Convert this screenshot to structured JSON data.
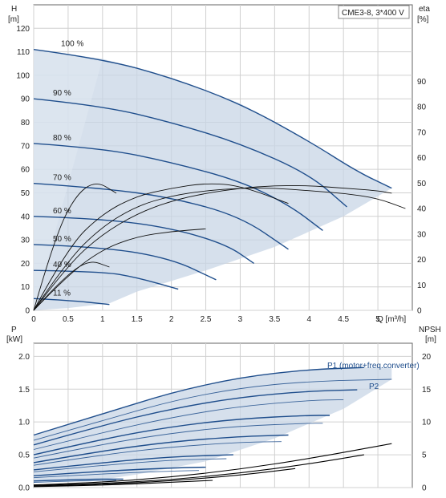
{
  "colors": {
    "pump_curve": "#1f4e8c",
    "envelope_fill": "#c8d6e5",
    "envelope_fill_light": "#dfe8f1",
    "efficiency_curve": "#111111",
    "npsh_curve": "#000000",
    "grid": "#d0d0d0",
    "axis": "#666666"
  },
  "chart_data": [
    {
      "type": "line",
      "panel": "head",
      "title": "CME3-8, 3*400 V",
      "xlabel": "Q [m³/h]",
      "ylabel_left": "H\n[m]",
      "ylabel_right": "eta\n[%]",
      "xlim": [
        0,
        5.5
      ],
      "ylim_left": [
        0,
        130
      ],
      "ylim_right": [
        0,
        120
      ],
      "x_ticks": [
        "0",
        "0.5",
        "1",
        "1.5",
        "2",
        "2.5",
        "3",
        "3.5",
        "4",
        "4.5",
        "5"
      ],
      "y_ticks_left": [
        "0",
        "10",
        "20",
        "30",
        "40",
        "50",
        "60",
        "70",
        "80",
        "90",
        "100",
        "110",
        "120"
      ],
      "y_ticks_right": [
        "0",
        "10",
        "20",
        "30",
        "40",
        "50",
        "60",
        "70",
        "80",
        "90"
      ],
      "grid": true,
      "head_curves": [
        {
          "label": "100 %",
          "x": [
            0,
            1,
            2,
            3,
            4,
            4.7,
            5.2
          ],
          "y": [
            111,
            107,
            99,
            88,
            72,
            59,
            52
          ]
        },
        {
          "label": "90 %",
          "x": [
            0,
            1,
            2,
            3,
            4,
            4.55
          ],
          "y": [
            90,
            87,
            80,
            71,
            58,
            44
          ]
        },
        {
          "label": "80 %",
          "x": [
            0,
            1,
            2,
            3,
            3.7,
            4.2
          ],
          "y": [
            71,
            69,
            63,
            55,
            45,
            34
          ]
        },
        {
          "label": "70 %",
          "x": [
            0,
            1,
            2,
            3,
            3.7
          ],
          "y": [
            54,
            52,
            48,
            40,
            26
          ]
        },
        {
          "label": "60 %",
          "x": [
            0,
            1,
            2,
            2.8,
            3.2
          ],
          "y": [
            40,
            39,
            35,
            28,
            20
          ]
        },
        {
          "label": "50 %",
          "x": [
            0,
            1,
            2,
            2.65
          ],
          "y": [
            28,
            27,
            22,
            13
          ]
        },
        {
          "label": "40 %",
          "x": [
            0,
            1,
            1.5,
            2.1
          ],
          "y": [
            17,
            16.5,
            14,
            9
          ]
        },
        {
          "label": "11 %",
          "x": [
            0,
            0.5,
            1.1
          ],
          "y": [
            5,
            4.3,
            2.5
          ]
        }
      ],
      "envelope": {
        "upper_x": [
          0,
          1,
          2,
          3,
          4,
          4.7,
          5.2
        ],
        "upper_y": [
          111,
          107,
          99,
          88,
          72,
          59,
          52
        ],
        "lower_x": [
          5.2,
          4.5,
          3.5,
          2.5,
          1.5,
          1.1,
          0.5,
          0
        ],
        "lower_y": [
          52,
          40,
          27,
          17,
          8,
          3,
          1,
          0
        ]
      },
      "efficiency_curves": [
        {
          "x": [
            0,
            0.3,
            0.6,
            0.9,
            1.2
          ],
          "y": [
            0,
            28,
            45,
            51,
            46
          ]
        },
        {
          "x": [
            0,
            0.5,
            1,
            1.5,
            2,
            2.5,
            3,
            3.7
          ],
          "y": [
            0,
            25,
            38,
            45,
            48,
            50,
            49,
            42
          ]
        },
        {
          "x": [
            0,
            0.5,
            1,
            1.5,
            2,
            2.5,
            3,
            3.5,
            4,
            4.5,
            5,
            5.4
          ],
          "y": [
            0,
            20,
            33,
            41,
            45,
            47,
            48,
            48,
            47,
            46,
            44,
            40
          ]
        },
        {
          "x": [
            0,
            0.5,
            1,
            1.5,
            2,
            2.5,
            3,
            3.5,
            4,
            4.5,
            5,
            5.2
          ],
          "y": [
            0,
            18,
            30,
            38,
            43,
            46,
            48,
            49,
            49,
            48,
            47,
            46
          ]
        },
        {
          "x": [
            0,
            0.5,
            1,
            1.5,
            2,
            2.5
          ],
          "y": [
            0,
            14,
            24,
            29,
            31,
            32
          ]
        },
        {
          "x": [
            0,
            0.4,
            0.8,
            1.1
          ],
          "y": [
            0,
            12,
            20,
            17
          ]
        }
      ]
    },
    {
      "type": "line",
      "panel": "power",
      "xlabel": "",
      "ylabel_left": "P\n[kW]",
      "ylabel_right": "NPSH\n[m]",
      "xlim": [
        0,
        5.5
      ],
      "ylim_left": [
        0,
        2.2
      ],
      "ylim_right": [
        0,
        22
      ],
      "y_ticks_left": [
        "0.0",
        "0.5",
        "1.0",
        "1.5",
        "2.0"
      ],
      "y_ticks_right": [
        "0",
        "5",
        "10",
        "15",
        "20"
      ],
      "grid": true,
      "series_labels": [
        "P1 (motor+freq.converter)",
        "P2"
      ],
      "p1_curves": [
        {
          "x": [
            0,
            1,
            2,
            3,
            4,
            4.8
          ],
          "y": [
            0.8,
            1.12,
            1.45,
            1.68,
            1.8,
            1.83
          ]
        },
        {
          "x": [
            0,
            1,
            2,
            3,
            4,
            4.7
          ],
          "y": [
            0.65,
            0.95,
            1.2,
            1.38,
            1.47,
            1.49
          ]
        },
        {
          "x": [
            0,
            1,
            2,
            3,
            4,
            4.3
          ],
          "y": [
            0.5,
            0.74,
            0.93,
            1.05,
            1.1,
            1.1
          ]
        },
        {
          "x": [
            0,
            1,
            2,
            3,
            3.7
          ],
          "y": [
            0.38,
            0.56,
            0.7,
            0.78,
            0.8
          ]
        },
        {
          "x": [
            0,
            1,
            2,
            2.9
          ],
          "y": [
            0.27,
            0.38,
            0.47,
            0.5
          ]
        },
        {
          "x": [
            0,
            1,
            2,
            2.5
          ],
          "y": [
            0.18,
            0.25,
            0.3,
            0.31
          ]
        },
        {
          "x": [
            0,
            0.5,
            1,
            1.3
          ],
          "y": [
            0.1,
            0.12,
            0.13,
            0.13
          ]
        }
      ],
      "p2_curves": [
        {
          "x": [
            0,
            1,
            2,
            3,
            4,
            5.2
          ],
          "y": [
            0.72,
            1.02,
            1.32,
            1.52,
            1.62,
            1.65
          ]
        },
        {
          "x": [
            0,
            1,
            2,
            3,
            4,
            4.5
          ],
          "y": [
            0.58,
            0.84,
            1.07,
            1.24,
            1.33,
            1.34
          ]
        },
        {
          "x": [
            0,
            1,
            2,
            3,
            4,
            4.2
          ],
          "y": [
            0.45,
            0.66,
            0.83,
            0.94,
            0.98,
            0.98
          ]
        },
        {
          "x": [
            0,
            1,
            2,
            3,
            3.6
          ],
          "y": [
            0.34,
            0.5,
            0.62,
            0.69,
            0.7
          ]
        },
        {
          "x": [
            0,
            1,
            2,
            2.8
          ],
          "y": [
            0.24,
            0.34,
            0.42,
            0.44
          ]
        },
        {
          "x": [
            0,
            1,
            2,
            2.4
          ],
          "y": [
            0.15,
            0.21,
            0.25,
            0.26
          ]
        },
        {
          "x": [
            0,
            0.5,
            1,
            1.2
          ],
          "y": [
            0.08,
            0.1,
            0.11,
            0.11
          ]
        }
      ],
      "npsh_curves": [
        {
          "x": [
            0,
            1,
            2,
            3,
            4,
            5.2
          ],
          "y": [
            0.4,
            0.8,
            1.6,
            2.8,
            4.4,
            6.7
          ]
        },
        {
          "x": [
            0,
            1,
            2,
            3,
            4,
            4.8
          ],
          "y": [
            0.3,
            0.6,
            1.2,
            2.2,
            3.6,
            5
          ]
        },
        {
          "x": [
            0,
            1,
            2,
            3,
            3.8
          ],
          "y": [
            0.2,
            0.5,
            1,
            1.9,
            2.9
          ]
        },
        {
          "x": [
            0,
            1,
            2,
            2.6
          ],
          "y": [
            0.15,
            0.35,
            0.8,
            1.1
          ]
        }
      ],
      "envelope": {
        "upper_x": [
          0,
          1,
          2,
          3,
          4,
          4.8,
          5.2
        ],
        "upper_y": [
          0.8,
          1.12,
          1.45,
          1.68,
          1.8,
          1.83,
          1.83
        ],
        "lower_x": [
          5.2,
          4.5,
          3.5,
          2.5,
          1.5,
          0.8,
          0
        ],
        "lower_y": [
          1.65,
          1.2,
          0.75,
          0.4,
          0.2,
          0.09,
          0.08
        ]
      }
    }
  ]
}
